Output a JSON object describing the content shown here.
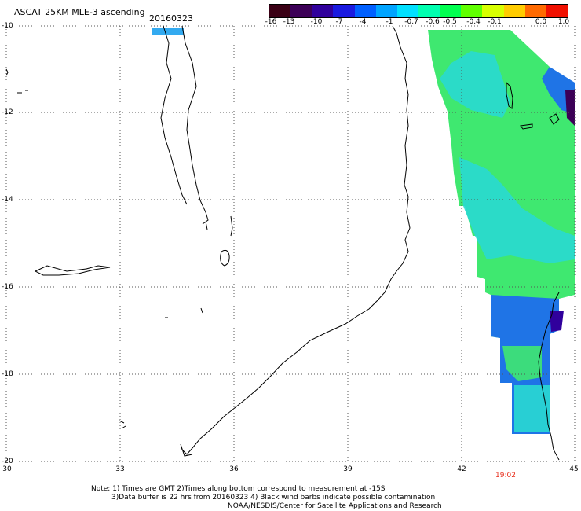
{
  "header": {
    "title": "ASCAT 25KM MLE-3 ascending",
    "date": "20160323"
  },
  "legend": {
    "ticks": [
      "-16",
      "-13",
      "-10",
      "-7",
      "-4",
      "-1",
      "-0.7",
      "-0.6",
      "-0.5",
      "-0.4",
      "-0.1",
      "0.0",
      "1.0"
    ],
    "colors": [
      "#3a0015",
      "#3c0057",
      "#30009c",
      "#1a1ae0",
      "#0060ff",
      "#00a4ff",
      "#00e0ff",
      "#00ffb0",
      "#00ff50",
      "#60ff00",
      "#d8ff00",
      "#ffcc00",
      "#ff6a00",
      "#f01000"
    ]
  },
  "axes": {
    "lat_labels": [
      "-10",
      "-12",
      "-14",
      "-16",
      "-18",
      "-20"
    ],
    "lon_labels": [
      "30",
      "33",
      "36",
      "39",
      "42",
      "45"
    ]
  },
  "map": {
    "lat_range": [
      -20,
      -10
    ],
    "lon_range": [
      30,
      45
    ],
    "grid": "dotted"
  },
  "overlay": {
    "pass_time": "19:02"
  },
  "notes": [
    "Note: 1) Times are GMT 2)Times along bottom correspond to measurement at -15S",
    "3)Data buffer is 22 hrs from 20160323 4) Black wind barbs indicate possible contamination",
    "NOAA/NESDIS/Center for Satellite Applications and Research"
  ],
  "colors": {
    "swath_green": "#3fe870",
    "swath_cyan": "#29d9d2",
    "swath_blue": "#1f74e6",
    "pass_time_red": "#e8301e"
  }
}
